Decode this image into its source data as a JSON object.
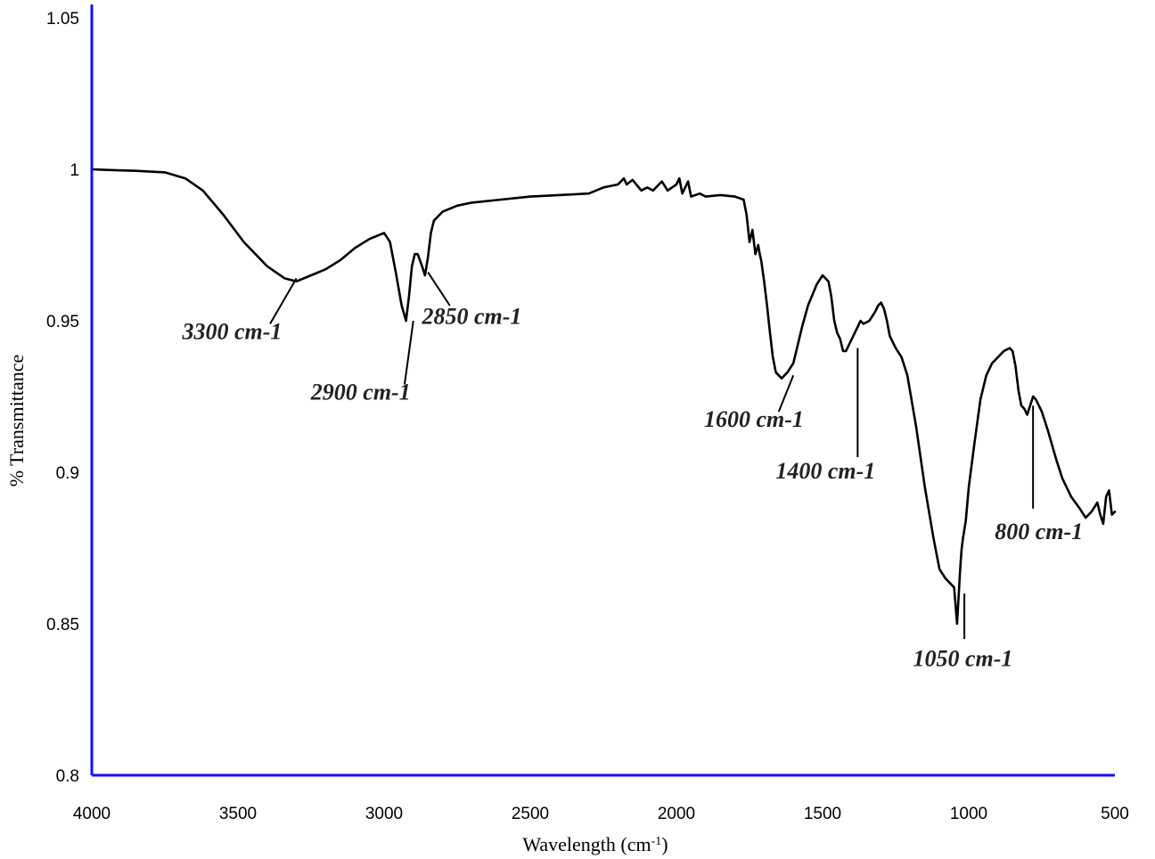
{
  "chart_data": {
    "type": "line",
    "title": "",
    "xlabel": "Wavelength (cm",
    "xlabel_superscript": "-1",
    "xlabel_suffix": ")",
    "ylabel": "% Transmittance",
    "xlim": [
      4000,
      500
    ],
    "ylim": [
      0.8,
      1.05
    ],
    "x_reversed": true,
    "grid": false,
    "axis_color": "#1010ff",
    "line_color": "#000000",
    "x_ticks": [
      {
        "value": 4000,
        "label": "4000"
      },
      {
        "value": 3500,
        "label": "3500"
      },
      {
        "value": 3000,
        "label": "3000"
      },
      {
        "value": 2500,
        "label": "2500"
      },
      {
        "value": 2000,
        "label": "2000"
      },
      {
        "value": 1500,
        "label": "1500"
      },
      {
        "value": 1000,
        "label": "1000"
      },
      {
        "value": 500,
        "label": "500"
      }
    ],
    "y_ticks": [
      {
        "value": 0.8,
        "label": "0.8"
      },
      {
        "value": 0.85,
        "label": "0.85"
      },
      {
        "value": 0.9,
        "label": "0.9"
      },
      {
        "value": 0.95,
        "label": "0.95"
      },
      {
        "value": 1,
        "label": "1"
      },
      {
        "value": 1.05,
        "label": "1.05"
      }
    ],
    "series": [
      {
        "x": [
          4000,
          3950,
          3850,
          3750,
          3680,
          3620,
          3550,
          3480,
          3400,
          3340,
          3300,
          3250,
          3200,
          3150,
          3100,
          3050,
          3000,
          2980,
          2960,
          2940,
          2925,
          2915,
          2905,
          2895,
          2885,
          2870,
          2860,
          2850,
          2840,
          2830,
          2820,
          2800,
          2750,
          2700,
          2600,
          2500,
          2400,
          2300,
          2250,
          2200,
          2180,
          2170,
          2150,
          2120,
          2100,
          2080,
          2050,
          2030,
          2000,
          1990,
          1980,
          1960,
          1950,
          1920,
          1900,
          1850,
          1800,
          1770,
          1760,
          1750,
          1740,
          1730,
          1720,
          1715,
          1710,
          1700,
          1690,
          1680,
          1670,
          1660,
          1640,
          1620,
          1600,
          1590,
          1570,
          1550,
          1520,
          1500,
          1480,
          1470,
          1460,
          1450,
          1440,
          1430,
          1420,
          1410,
          1400,
          1390,
          1380,
          1370,
          1360,
          1340,
          1320,
          1310,
          1300,
          1290,
          1280,
          1270,
          1250,
          1230,
          1210,
          1180,
          1150,
          1120,
          1100,
          1080,
          1060,
          1050,
          1040,
          1030,
          1025,
          1020,
          1010,
          1000,
          980,
          960,
          940,
          920,
          900,
          880,
          860,
          850,
          840,
          830,
          820,
          810,
          800,
          790,
          780,
          770,
          750,
          730,
          700,
          680,
          650,
          620,
          600,
          580,
          560,
          550,
          540,
          530,
          520,
          510,
          500
        ],
        "y": [
          1.0,
          0.9998,
          0.9995,
          0.999,
          0.997,
          0.993,
          0.985,
          0.976,
          0.968,
          0.964,
          0.963,
          0.965,
          0.967,
          0.97,
          0.974,
          0.977,
          0.979,
          0.976,
          0.966,
          0.955,
          0.95,
          0.958,
          0.968,
          0.972,
          0.972,
          0.968,
          0.965,
          0.971,
          0.979,
          0.983,
          0.984,
          0.986,
          0.988,
          0.989,
          0.99,
          0.991,
          0.9915,
          0.992,
          0.994,
          0.995,
          0.997,
          0.995,
          0.9965,
          0.993,
          0.994,
          0.993,
          0.996,
          0.993,
          0.995,
          0.997,
          0.992,
          0.996,
          0.991,
          0.992,
          0.991,
          0.9915,
          0.991,
          0.99,
          0.985,
          0.976,
          0.98,
          0.972,
          0.975,
          0.972,
          0.97,
          0.963,
          0.955,
          0.946,
          0.938,
          0.933,
          0.931,
          0.933,
          0.936,
          0.94,
          0.948,
          0.955,
          0.962,
          0.965,
          0.963,
          0.958,
          0.95,
          0.946,
          0.944,
          0.94,
          0.94,
          0.942,
          0.944,
          0.946,
          0.948,
          0.95,
          0.949,
          0.95,
          0.953,
          0.955,
          0.956,
          0.954,
          0.95,
          0.945,
          0.941,
          0.938,
          0.932,
          0.915,
          0.895,
          0.878,
          0.868,
          0.865,
          0.863,
          0.862,
          0.85,
          0.867,
          0.874,
          0.878,
          0.884,
          0.895,
          0.91,
          0.924,
          0.932,
          0.936,
          0.938,
          0.94,
          0.941,
          0.94,
          0.935,
          0.927,
          0.922,
          0.921,
          0.919,
          0.922,
          0.925,
          0.924,
          0.92,
          0.914,
          0.904,
          0.898,
          0.892,
          0.888,
          0.885,
          0.887,
          0.89,
          0.886,
          0.883,
          0.892,
          0.894,
          0.886,
          0.887
        ]
      }
    ],
    "annotations": [
      {
        "text": "3300 cm-1",
        "x": 3300,
        "y": 0.964,
        "label_x": 3520,
        "label_y": 0.944,
        "leader_to_x": 3390,
        "leader_to_y": 0.949,
        "label_anchor": "middle"
      },
      {
        "text": "2900 cm-1",
        "x": 2900,
        "y": 0.95,
        "label_x": 3080,
        "label_y": 0.924,
        "leader_to_x": 2930,
        "leader_to_y": 0.929,
        "label_anchor": "middle"
      },
      {
        "text": "2850 cm-1",
        "x": 2850,
        "y": 0.966,
        "label_x": 2700,
        "label_y": 0.949,
        "leader_to_x": 2775,
        "leader_to_y": 0.955,
        "label_anchor": "middle"
      },
      {
        "text": "1600 cm-1",
        "x": 1600,
        "y": 0.932,
        "label_x": 1735,
        "label_y": 0.915,
        "leader_to_x": 1650,
        "leader_to_y": 0.92,
        "label_anchor": "middle"
      },
      {
        "text": "1400 cm-1",
        "x": 1380,
        "y": 0.941,
        "label_x": 1490,
        "label_y": 0.898,
        "leader_to_x": 1380,
        "leader_to_y": 0.905,
        "label_anchor": "middle"
      },
      {
        "text": "1050 cm-1",
        "x": 1015,
        "y": 0.86,
        "label_x": 1020,
        "label_y": 0.836,
        "leader_to_x": 1015,
        "leader_to_y": 0.845,
        "label_anchor": "middle"
      },
      {
        "text": "800 cm-1",
        "x": 780,
        "y": 0.922,
        "label_x": 760,
        "label_y": 0.878,
        "leader_to_x": 780,
        "leader_to_y": 0.888,
        "label_anchor": "middle"
      }
    ]
  }
}
